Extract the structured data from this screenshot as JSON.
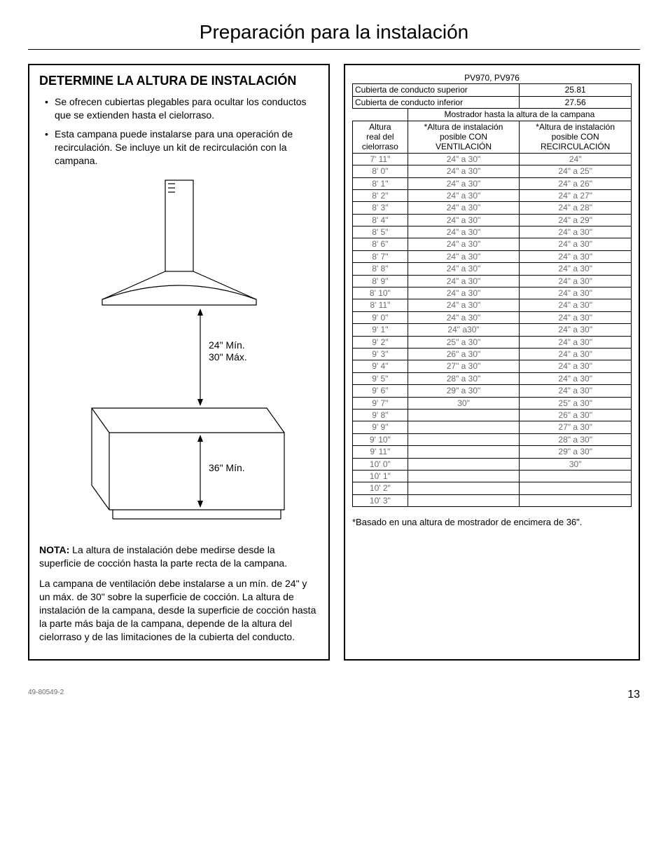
{
  "pageTitle": "Preparación para la instalación",
  "section": {
    "heading": "DETERMINE LA ALTURA DE INSTALACIÓN",
    "bullets": [
      "Se ofrecen cubiertas plegables para ocultar los conductos que se extienden hasta el cielorraso.",
      "Esta campana puede instalarse para una operación de recirculación. Se incluye un kit de recirculación con la campana."
    ],
    "diagram": {
      "label_top": "24\" Mín.",
      "label_mid": "30\" Máx.",
      "label_bottom": "36\" Mín."
    },
    "note_label": "NOTA:",
    "note_text": " La altura de instalación debe medirse desde la superficie de cocción hasta la parte recta de la campana.",
    "body_text": "La campana de ventilación debe instalarse a un mín. de 24\" y un máx. de 30\" sobre la superficie de cocción. La altura de instalación de la campana, desde la superficie de cocción hasta la parte más baja de la campana, depende de la altura del cielorraso y de las limitaciones de la cubierta del conducto."
  },
  "table": {
    "model": "PV970, PV976",
    "row_upper": {
      "label": "Cubierta de conducto superior",
      "value": "25.81"
    },
    "row_lower": {
      "label": "Cubierta de conducto inferior",
      "value": "27.56"
    },
    "span_header": "Mostrador hasta la altura de la campana",
    "col1_l1": "Altura",
    "col1_l2": "real del",
    "col1_l3": "cielorraso",
    "col2_l1": "*Altura de instalación",
    "col2_l2": "posible CON",
    "col2_l3": "VENTILACIÓN",
    "col3_l1": "*Altura de instalación",
    "col3_l2": "posible CON",
    "col3_l3": "RECIRCULACIÓN",
    "rows": [
      {
        "h": "7' 11\"",
        "v": "24\" a 30\"",
        "r": "24\""
      },
      {
        "h": "8' 0\"",
        "v": "24\"  a 30\"",
        "r": "24\" a 25\""
      },
      {
        "h": "8' 1\"",
        "v": "24\" a 30\"",
        "r": "24\" a 26\""
      },
      {
        "h": "8' 2\"",
        "v": "24\" a 30\"",
        "r": "24\" a 27\""
      },
      {
        "h": "8' 3\"",
        "v": "24\" a 30\"",
        "r": "24\" a 28\""
      },
      {
        "h": "8' 4\"",
        "v": "24\" a 30\"",
        "r": "24\" a 29\""
      },
      {
        "h": "8' 5\"",
        "v": "24\" a 30\"",
        "r": "24\" a 30\""
      },
      {
        "h": "8' 6\"",
        "v": "24\" a 30\"",
        "r": "24\" a 30\""
      },
      {
        "h": "8' 7\"",
        "v": "24\" a 30\"",
        "r": "24\" a 30\""
      },
      {
        "h": "8' 8\"",
        "v": "24\" a 30\"",
        "r": "24\" a 30\""
      },
      {
        "h": "8' 9\"",
        "v": "24\" a 30\"",
        "r": "24\" a 30\""
      },
      {
        "h": "8' 10\"",
        "v": "24\" a 30\"",
        "r": "24\" a 30\""
      },
      {
        "h": "8' 11\"",
        "v": "24\" a 30\"",
        "r": "24\" a 30\""
      },
      {
        "h": "9' 0\"",
        "v": "24\" a 30\"",
        "r": "24\" a 30\""
      },
      {
        "h": "9' 1\"",
        "v": "24\" a30\"",
        "r": "24\" a 30\""
      },
      {
        "h": "9' 2\"",
        "v": "25\" a 30\"",
        "r": "24\" a 30\""
      },
      {
        "h": "9' 3\"",
        "v": "26\" a 30\"",
        "r": "24\" a 30\""
      },
      {
        "h": "9' 4\"",
        "v": "27\" a 30\"",
        "r": "24\" a 30\""
      },
      {
        "h": "9' 5\"",
        "v": "28\" a 30\"",
        "r": "24\" a 30\""
      },
      {
        "h": "9' 6\"",
        "v": "29\" a 30\"",
        "r": "24\" a 30\""
      },
      {
        "h": "9' 7\"",
        "v": "30\"",
        "r": "25\" a 30\""
      },
      {
        "h": "9' 8\"",
        "v": "",
        "r": "26\" a 30\""
      },
      {
        "h": "9' 9\"",
        "v": "",
        "r": "27\" a 30\""
      },
      {
        "h": "9' 10\"",
        "v": "",
        "r": "28\" a 30\""
      },
      {
        "h": "9' 11\"",
        "v": "",
        "r": "29\" a 30\""
      },
      {
        "h": "10' 0\"",
        "v": "",
        "r": "30\""
      },
      {
        "h": "10' 1\"",
        "v": "",
        "r": ""
      },
      {
        "h": "10' 2\"",
        "v": "",
        "r": ""
      },
      {
        "h": "10' 3\"",
        "v": "",
        "r": ""
      }
    ],
    "footnote": "*Basado en una altura de mostrador de encimera de 36\"."
  },
  "footer": {
    "docnum": "49-80549-2",
    "pagenum": "13"
  },
  "style": {
    "text_color": "#000000",
    "dim_color": "#6b6b6b",
    "border_color": "#000000",
    "background": "#ffffff",
    "title_fontsize": 28,
    "heading_fontsize": 18,
    "body_fontsize": 14,
    "table_fontsize": 12
  }
}
